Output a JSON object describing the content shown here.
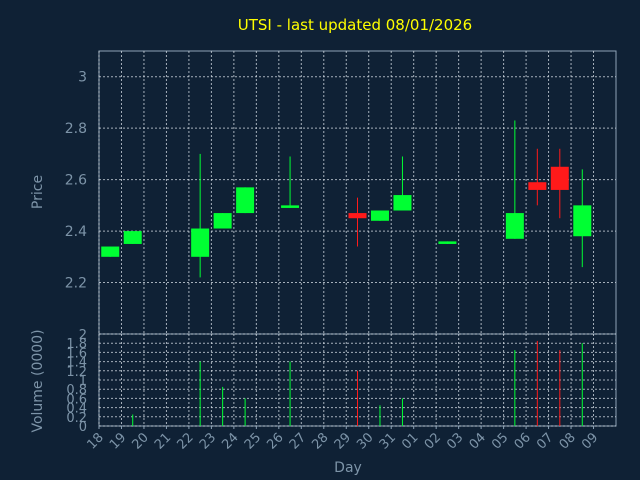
{
  "chart_data": [
    {
      "type": "candlestick",
      "title": "UTSI - last updated 08/01/2026",
      "ylabel": "Price",
      "ylim": [
        2.0,
        3.1
      ],
      "yticks": [
        "2.2",
        "2.4",
        "2.6",
        "2.8",
        "3"
      ],
      "grid": true,
      "colors": {
        "up": "#00ff33",
        "down": "#ff1a1a"
      },
      "categories": [
        "18",
        "19",
        "20",
        "21",
        "22",
        "23",
        "24",
        "25",
        "26",
        "27",
        "28",
        "29",
        "30",
        "31",
        "01",
        "02",
        "03",
        "04",
        "05",
        "06",
        "07",
        "08",
        "09"
      ],
      "candles": [
        {
          "day": "18",
          "open": 2.3,
          "close": 2.34,
          "high": 2.34,
          "low": 2.3
        },
        {
          "day": "19",
          "open": 2.35,
          "close": 2.4,
          "high": 2.4,
          "low": 2.35
        },
        {
          "day": "22",
          "open": 2.3,
          "close": 2.41,
          "high": 2.7,
          "low": 2.22
        },
        {
          "day": "23",
          "open": 2.41,
          "close": 2.47,
          "high": 2.47,
          "low": 2.41
        },
        {
          "day": "24",
          "open": 2.47,
          "close": 2.57,
          "high": 2.57,
          "low": 2.47
        },
        {
          "day": "26",
          "open": 2.49,
          "close": 2.5,
          "high": 2.69,
          "low": 2.49
        },
        {
          "day": "29",
          "open": 2.47,
          "close": 2.45,
          "high": 2.53,
          "low": 2.34
        },
        {
          "day": "30",
          "open": 2.44,
          "close": 2.48,
          "high": 2.48,
          "low": 2.44
        },
        {
          "day": "31",
          "open": 2.48,
          "close": 2.54,
          "high": 2.69,
          "low": 2.48
        },
        {
          "day": "02",
          "open": 2.35,
          "close": 2.36,
          "high": 2.36,
          "low": 2.35
        },
        {
          "day": "05",
          "open": 2.37,
          "close": 2.47,
          "high": 2.83,
          "low": 2.37
        },
        {
          "day": "06",
          "open": 2.59,
          "close": 2.56,
          "high": 2.72,
          "low": 2.5
        },
        {
          "day": "07",
          "open": 2.65,
          "close": 2.56,
          "high": 2.72,
          "low": 2.45
        },
        {
          "day": "08",
          "open": 2.38,
          "close": 2.5,
          "high": 2.64,
          "low": 2.26
        }
      ]
    },
    {
      "type": "bar",
      "ylabel": "Volume (0000)",
      "xlabel": "Day",
      "ylim": [
        0,
        2.0
      ],
      "yticks": [
        "0",
        "0.2",
        "0.4",
        "0.6",
        "0.8",
        "1",
        "1.2",
        "1.4",
        "1.6",
        "1.8",
        "2"
      ],
      "categories": [
        "18",
        "19",
        "20",
        "21",
        "22",
        "23",
        "24",
        "25",
        "26",
        "27",
        "28",
        "29",
        "30",
        "31",
        "01",
        "02",
        "03",
        "04",
        "05",
        "06",
        "07",
        "08",
        "09"
      ],
      "volumes": [
        {
          "day": "19",
          "value": 0.25,
          "dir": "up"
        },
        {
          "day": "22",
          "value": 1.4,
          "dir": "up"
        },
        {
          "day": "23",
          "value": 0.85,
          "dir": "up"
        },
        {
          "day": "24",
          "value": 0.6,
          "dir": "up"
        },
        {
          "day": "26",
          "value": 1.4,
          "dir": "up"
        },
        {
          "day": "29",
          "value": 1.2,
          "dir": "down"
        },
        {
          "day": "30",
          "value": 0.45,
          "dir": "up"
        },
        {
          "day": "31",
          "value": 0.6,
          "dir": "up"
        },
        {
          "day": "05",
          "value": 1.65,
          "dir": "up"
        },
        {
          "day": "06",
          "value": 1.85,
          "dir": "down"
        },
        {
          "day": "07",
          "value": 1.65,
          "dir": "down"
        },
        {
          "day": "08",
          "value": 1.8,
          "dir": "up"
        }
      ]
    }
  ]
}
